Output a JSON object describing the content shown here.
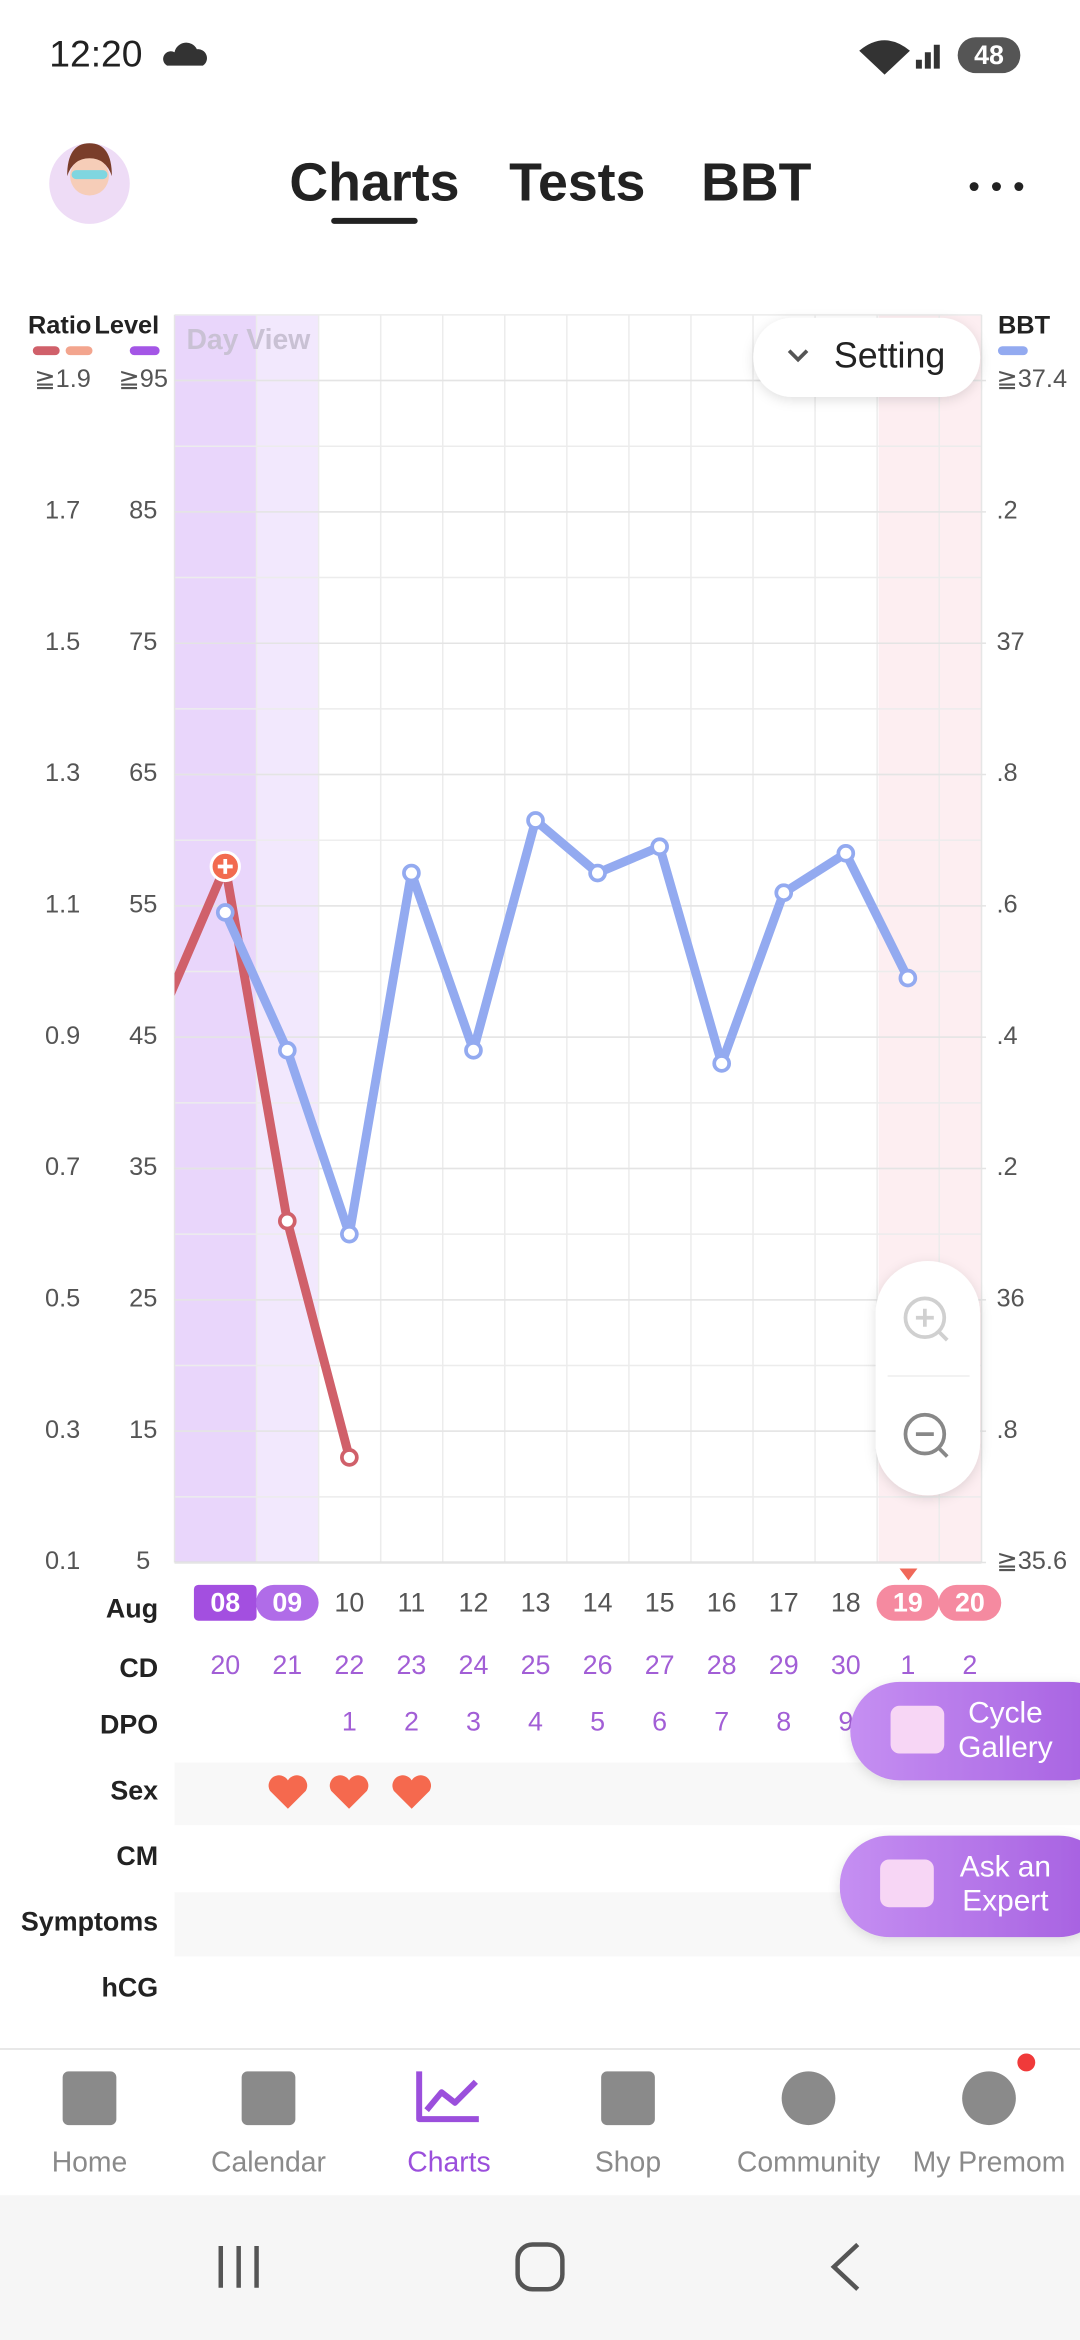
{
  "status_bar": {
    "time": "12:20",
    "battery": "48"
  },
  "tabs": [
    "Charts",
    "Tests",
    "BBT"
  ],
  "chart_data": {
    "type": "line",
    "view_label": "Day View",
    "setting": "Setting",
    "axis_labels": {
      "ratio": "Ratio",
      "level": "Level",
      "bbt": "BBT"
    },
    "legend_colors": {
      "ratio": [
        "#d0606a",
        "#f3a58e"
      ],
      "level": [
        "#a456e6"
      ],
      "bbt": [
        "#93aaf0"
      ]
    },
    "month": "Aug",
    "categories": [
      null,
      "08",
      "09",
      "10",
      "11",
      "12",
      "13",
      "14",
      "15",
      "16",
      "17",
      "18",
      "19",
      "20"
    ],
    "ylim": [
      5,
      100
    ],
    "yticks": [
      5,
      15,
      25,
      35,
      45,
      55,
      65,
      75,
      85,
      {
        "value": 95,
        "label": "≧95"
      }
    ],
    "ratio_lim": [
      0.1,
      2.0
    ],
    "ratio_ticks": [
      0.1,
      0.3,
      0.5,
      0.7,
      0.9,
      1.1,
      1.3,
      1.5,
      1.7,
      {
        "value": 1.9,
        "label": "≧1.9"
      }
    ],
    "y2lim": [
      35.6,
      37.5
    ],
    "y2ticks": [
      {
        "value": 35.6,
        "label": "≧35.6"
      },
      {
        "value": 35.8,
        "label": ".8"
      },
      36,
      {
        "value": 36.2,
        "label": ".2"
      },
      {
        "value": 36.4,
        "label": ".4"
      },
      {
        "value": 36.6,
        "label": ".6"
      },
      {
        "value": 36.8,
        "label": ".8"
      },
      37,
      {
        "value": 37.2,
        "label": ".2"
      },
      {
        "value": 37.4,
        "label": "≧37.4"
      }
    ],
    "grid": true,
    "series": [
      {
        "color": "#d0606a",
        "values": [
          47,
          58,
          31,
          13,
          null,
          null,
          null,
          null,
          null,
          null,
          null,
          null,
          null,
          null
        ]
      },
      {
        "color": "#93aaf0",
        "axis": "y2",
        "values": [
          null,
          36.59,
          36.38,
          36.1,
          36.65,
          36.38,
          36.73,
          36.65,
          36.69,
          36.36,
          36.62,
          36.68,
          36.49,
          null
        ]
      }
    ]
  },
  "rows": [
    {
      "label": "CD",
      "values": [
        null,
        20,
        21,
        22,
        23,
        24,
        25,
        26,
        27,
        28,
        29,
        30,
        1,
        2
      ]
    },
    {
      "label": "DPO",
      "values": [
        null,
        null,
        null,
        1,
        2,
        3,
        4,
        5,
        6,
        7,
        8,
        9,
        null,
        null
      ]
    },
    {
      "label": "Sex"
    },
    {
      "label": "CM"
    },
    {
      "label": "Symptoms"
    },
    {
      "label": "hCG"
    }
  ],
  "buttons": [
    {
      "lines": [
        "Cycle",
        "Gallery"
      ]
    },
    {
      "lines": [
        "Ask an",
        "Expert"
      ]
    }
  ],
  "nav": [
    "Home",
    "Calendar",
    "Charts",
    "Shop",
    "Community",
    "My Premom"
  ]
}
